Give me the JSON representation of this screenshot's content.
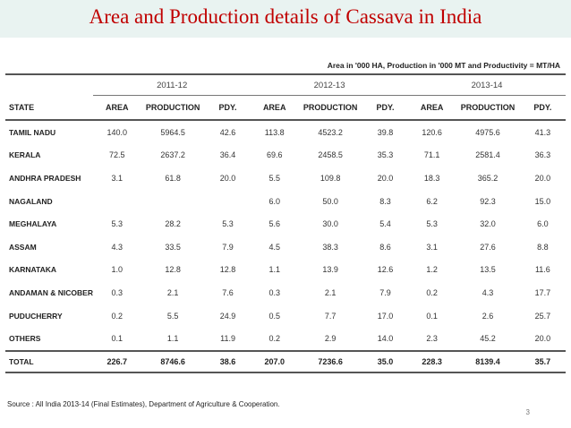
{
  "slide": {
    "title": "Area and Production details of Cassava in India",
    "page_number": "3"
  },
  "table": {
    "units_note": "Area in '000 HA, Production in '000 MT and Productivity = MT/HA",
    "years": [
      "2011-12",
      "2012-13",
      "2013-14"
    ],
    "headers": {
      "state": "STATE",
      "area": "AREA",
      "production": "PRODUCTION",
      "pdy": "PDY."
    },
    "rows": [
      {
        "state": "TAMIL NADU",
        "v": [
          "140.0",
          "5964.5",
          "42.6",
          "113.8",
          "4523.2",
          "39.8",
          "120.6",
          "4975.6",
          "41.3"
        ]
      },
      {
        "state": "KERALA",
        "v": [
          "72.5",
          "2637.2",
          "36.4",
          "69.6",
          "2458.5",
          "35.3",
          "71.1",
          "2581.4",
          "36.3"
        ]
      },
      {
        "state": "ANDHRA PRADESH",
        "v": [
          "3.1",
          "61.8",
          "20.0",
          "5.5",
          "109.8",
          "20.0",
          "18.3",
          "365.2",
          "20.0"
        ]
      },
      {
        "state": "NAGALAND",
        "v": [
          "",
          "",
          "",
          "6.0",
          "50.0",
          "8.3",
          "6.2",
          "92.3",
          "15.0"
        ]
      },
      {
        "state": "MEGHALAYA",
        "v": [
          "5.3",
          "28.2",
          "5.3",
          "5.6",
          "30.0",
          "5.4",
          "5.3",
          "32.0",
          "6.0"
        ]
      },
      {
        "state": "ASSAM",
        "v": [
          "4.3",
          "33.5",
          "7.9",
          "4.5",
          "38.3",
          "8.6",
          "3.1",
          "27.6",
          "8.8"
        ]
      },
      {
        "state": "KARNATAKA",
        "v": [
          "1.0",
          "12.8",
          "12.8",
          "1.1",
          "13.9",
          "12.6",
          "1.2",
          "13.5",
          "11.6"
        ]
      },
      {
        "state": "ANDAMAN & NICOBER",
        "v": [
          "0.3",
          "2.1",
          "7.6",
          "0.3",
          "2.1",
          "7.9",
          "0.2",
          "4.3",
          "17.7"
        ]
      },
      {
        "state": "PUDUCHERRY",
        "v": [
          "0.2",
          "5.5",
          "24.9",
          "0.5",
          "7.7",
          "17.0",
          "0.1",
          "2.6",
          "25.7"
        ]
      },
      {
        "state": "OTHERS",
        "v": [
          "0.1",
          "1.1",
          "11.9",
          "0.2",
          "2.9",
          "14.0",
          "2.3",
          "45.2",
          "20.0"
        ]
      }
    ],
    "total": {
      "state": "TOTAL",
      "v": [
        "226.7",
        "8746.6",
        "38.6",
        "207.0",
        "7236.6",
        "35.0",
        "228.3",
        "8139.4",
        "35.7"
      ]
    },
    "source": "Source : All India 2013-14 (Final Estimates), Department of Agriculture & Cooperation."
  }
}
